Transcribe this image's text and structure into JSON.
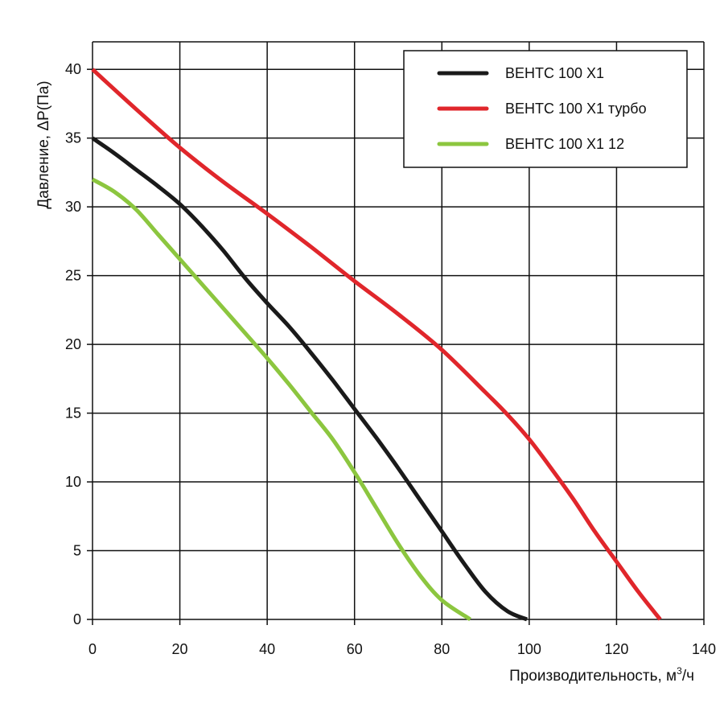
{
  "chart_data": {
    "type": "line",
    "xlabel": "Производительность, м",
    "xlabel_sup": "3",
    "xlabel_tail": "/ч",
    "ylabel": "Давление, ΔP(Па)",
    "xlim": [
      0,
      140
    ],
    "ylim": [
      0,
      42
    ],
    "x_ticks": [
      0,
      20,
      40,
      60,
      80,
      100,
      120,
      140
    ],
    "y_ticks": [
      0,
      5,
      10,
      15,
      20,
      25,
      30,
      35,
      40
    ],
    "x_grid": [
      0,
      20,
      40,
      60,
      80,
      100,
      120,
      140
    ],
    "y_grid": [
      0,
      5,
      10,
      15,
      20,
      25,
      30,
      35,
      40,
      42
    ],
    "grid": true,
    "legend_position": "top-right",
    "series": [
      {
        "name": "ВЕНТС 100 Х1",
        "color": "#1a1a1a",
        "x": [
          0,
          5,
          10,
          15,
          20,
          25,
          30,
          35,
          40,
          45,
          50,
          55,
          60,
          65,
          70,
          75,
          80,
          85,
          90,
          95,
          99.5
        ],
        "y": [
          35,
          33.9,
          32.7,
          31.5,
          30.2,
          28.6,
          26.8,
          24.8,
          23.0,
          21.3,
          19.4,
          17.4,
          15.3,
          13.2,
          11.0,
          8.7,
          6.4,
          4.1,
          2.0,
          0.6,
          0
        ]
      },
      {
        "name": "ВЕНТС 100 Х1 турбо",
        "color": "#e0262b",
        "x": [
          0,
          10,
          20,
          30,
          40,
          50,
          60,
          70,
          80,
          90,
          95,
          100,
          105,
          110,
          115,
          120,
          125,
          130
        ],
        "y": [
          40,
          37.1,
          34.3,
          31.8,
          29.5,
          27.1,
          24.6,
          22.2,
          19.6,
          16.5,
          14.9,
          13.1,
          11.0,
          8.8,
          6.4,
          4.2,
          2.0,
          0
        ]
      },
      {
        "name": "ВЕНТС 100 Х1 12",
        "color": "#8cc63f",
        "x": [
          0,
          5,
          10,
          15,
          20,
          25,
          30,
          35,
          40,
          45,
          50,
          55,
          60,
          65,
          70,
          75,
          80,
          86.5
        ],
        "y": [
          32,
          31.1,
          29.8,
          28.0,
          26.2,
          24.4,
          22.6,
          20.8,
          19.0,
          17.1,
          15.1,
          13.1,
          10.7,
          8.1,
          5.5,
          3.2,
          1.4,
          0
        ]
      }
    ]
  }
}
